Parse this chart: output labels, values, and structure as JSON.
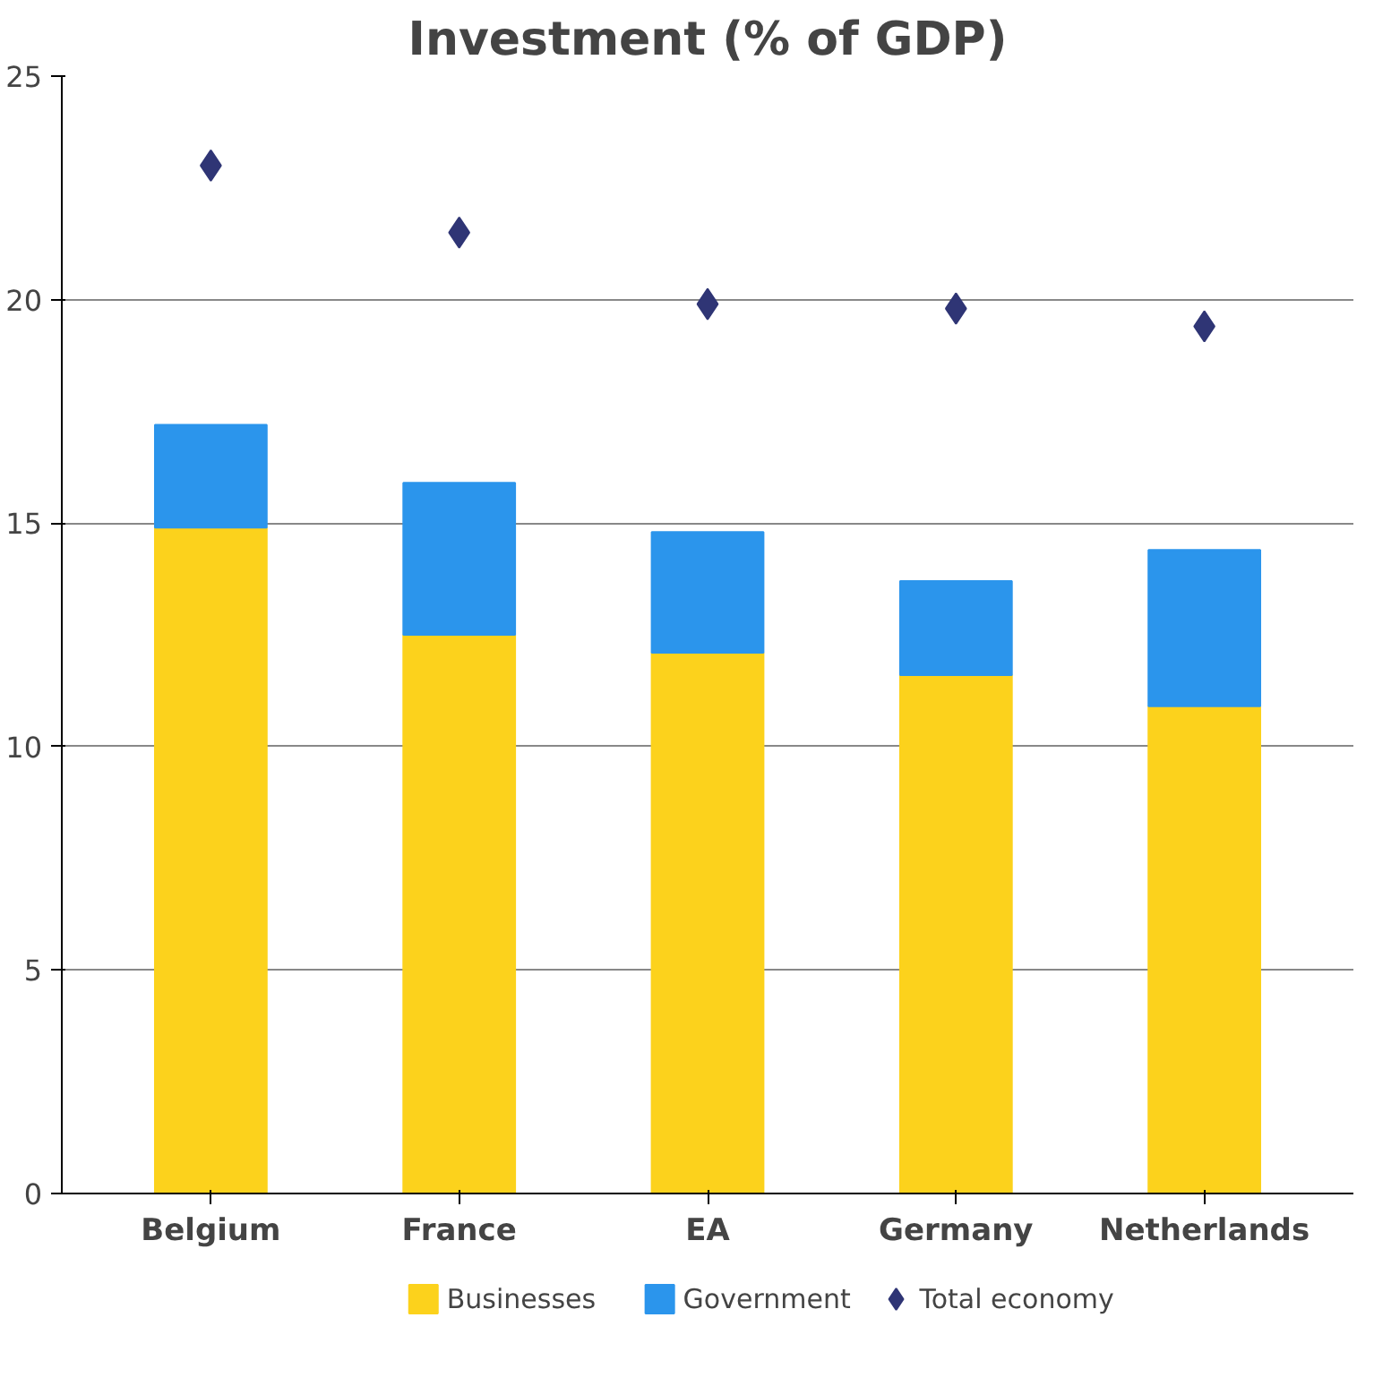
{
  "chart_data": {
    "type": "bar",
    "title": "Investment (% of GDP)",
    "categories": [
      "Belgium",
      "France",
      "EA",
      "Germany",
      "Netherlands"
    ],
    "stacked": true,
    "series": [
      {
        "name": "Businesses",
        "color": "#fcd21c",
        "values": [
          14.9,
          12.5,
          12.1,
          11.6,
          10.9
        ]
      },
      {
        "name": "Government",
        "color": "#2b95ec",
        "values": [
          2.3,
          3.4,
          2.7,
          2.1,
          3.5
        ]
      },
      {
        "name": "Total economy",
        "type": "scatter",
        "color": "#2f3575",
        "x": [
          "Belgium",
          "France",
          "EA",
          "Germany",
          "Netherlands"
        ],
        "values": [
          23.0,
          21.5,
          19.9,
          19.8,
          19.4
        ]
      }
    ],
    "ylim": [
      0,
      25
    ],
    "yticks": [
      0,
      5,
      10,
      15,
      20,
      25
    ],
    "grid": "y",
    "legend": "bottom",
    "marker": "diamond"
  }
}
